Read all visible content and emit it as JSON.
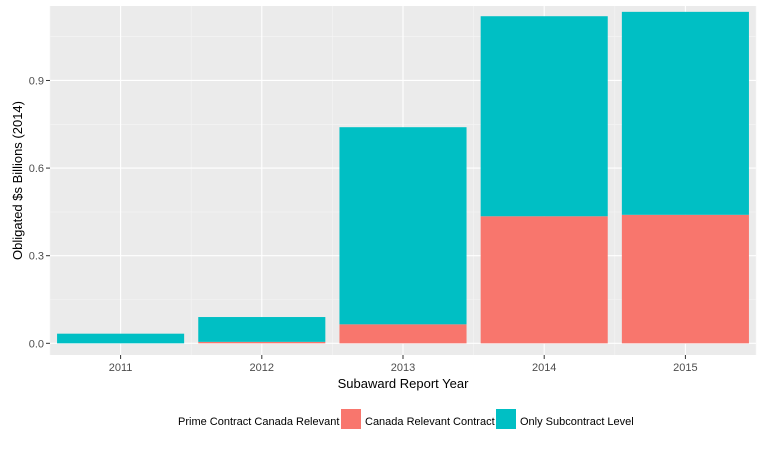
{
  "chart_data": {
    "type": "bar",
    "stacked": true,
    "title": "",
    "xlabel": "Subaward Report Year",
    "ylabel": "Obligated $s Billions (2014)",
    "categories": [
      "2011",
      "2012",
      "2013",
      "2014",
      "2015"
    ],
    "series": [
      {
        "name": "Canada Relevant Contract",
        "color": "#F8766D",
        "values": [
          0.0,
          0.005,
          0.065,
          0.435,
          0.44
        ]
      },
      {
        "name": "Only Subcontract Level",
        "color": "#00BFC4",
        "values": [
          0.033,
          0.085,
          0.675,
          0.685,
          0.695
        ]
      }
    ],
    "ylim": [
      -0.04,
      1.155
    ],
    "yticks": [
      0.0,
      0.3,
      0.6,
      0.9
    ],
    "ytick_labels": [
      "0.0",
      "0.3",
      "0.6",
      "0.9"
    ],
    "grid": true,
    "legend": {
      "placement": "bottom",
      "title": "Prime Contract Canada Relevant"
    }
  }
}
